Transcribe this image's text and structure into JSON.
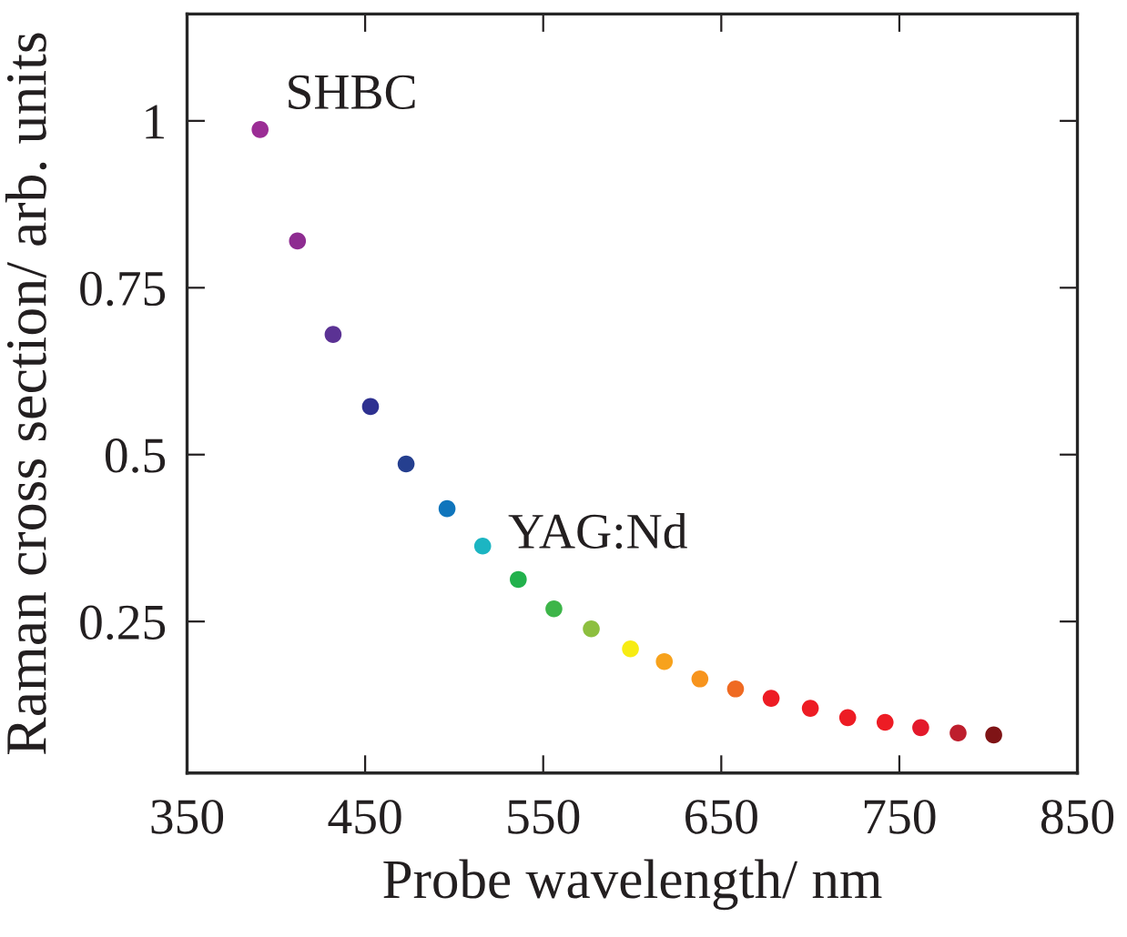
{
  "chart_data": {
    "type": "scatter",
    "xlabel": "Probe wavelength/ nm",
    "ylabel": "Raman cross section/ arb. units",
    "x": [
      391,
      412,
      432,
      453,
      473,
      496,
      516,
      536,
      556,
      577,
      599,
      618,
      638,
      658,
      678,
      700,
      721,
      742,
      762,
      783,
      803
    ],
    "values": [
      0.987,
      0.82,
      0.68,
      0.572,
      0.486,
      0.419,
      0.363,
      0.313,
      0.269,
      0.239,
      0.209,
      0.19,
      0.164,
      0.149,
      0.135,
      0.12,
      0.106,
      0.099,
      0.091,
      0.083,
      0.08
    ],
    "colors": [
      "#9b2d95",
      "#8e2c91",
      "#5b3294",
      "#2e3190",
      "#253f8f",
      "#0f75bc",
      "#1cb5c2",
      "#22b14c",
      "#3db549",
      "#8dbf3f",
      "#f7ec13",
      "#f7a21c",
      "#f7941d",
      "#ef6a22",
      "#ed1c24",
      "#ed1c24",
      "#ed1c24",
      "#ed1c24",
      "#e3192b",
      "#be1e2d",
      "#7f1416"
    ],
    "marker": "circle",
    "xlim": [
      350,
      850
    ],
    "xticks": [
      350,
      450,
      550,
      650,
      750,
      850
    ],
    "ylim": [
      0.023,
      1.16
    ],
    "yticks": [
      0.25,
      0.5,
      0.75,
      1
    ],
    "grid": false,
    "annotations": [
      {
        "text": "SHBC",
        "x": 391,
        "y": 0.987
      },
      {
        "text": "YAG:Nd",
        "x": 516,
        "y": 0.363
      }
    ]
  }
}
